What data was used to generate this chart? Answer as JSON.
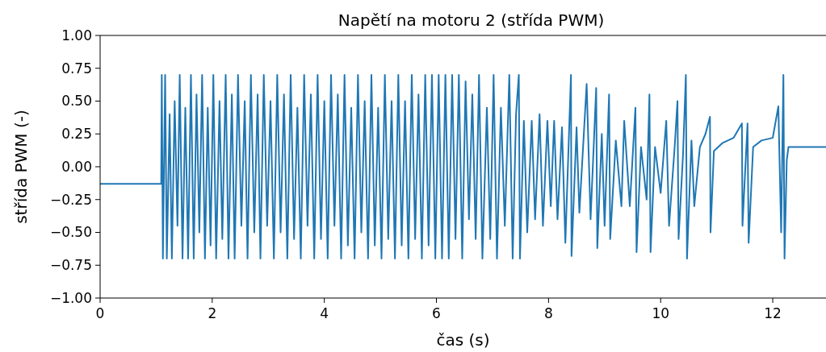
{
  "chart_data": {
    "type": "line",
    "title": "Napětí na motoru 2 (střída PWM)",
    "xlabel": "čas (s)",
    "ylabel": "střída PWM (-)",
    "xlim": [
      0,
      12.95
    ],
    "xticks": [
      0,
      2,
      4,
      6,
      8,
      10,
      12
    ],
    "ylim": [
      -1,
      1
    ],
    "yticks": [
      {
        "value": -1,
        "label": "−1.00"
      },
      {
        "value": -0.75,
        "label": "−0.75"
      },
      {
        "value": -0.5,
        "label": "−0.50"
      },
      {
        "value": -0.25,
        "label": "−0.25"
      },
      {
        "value": 0,
        "label": "0.00"
      },
      {
        "value": 0.25,
        "label": "0.25"
      },
      {
        "value": 0.5,
        "label": "0.50"
      },
      {
        "value": 0.75,
        "label": "0.75"
      },
      {
        "value": 1,
        "label": "1.00"
      }
    ],
    "grid": false,
    "series": [
      {
        "color": "#1f77b4",
        "x": [
          0,
          1.09,
          1.1,
          1.12,
          1.16,
          1.19,
          1.24,
          1.28,
          1.33,
          1.38,
          1.42,
          1.47,
          1.52,
          1.57,
          1.62,
          1.67,
          1.72,
          1.77,
          1.82,
          1.87,
          1.92,
          1.97,
          2.02,
          2.07,
          2.13,
          2.18,
          2.24,
          2.29,
          2.35,
          2.4,
          2.46,
          2.52,
          2.58,
          2.63,
          2.69,
          2.75,
          2.81,
          2.86,
          2.92,
          2.98,
          3.04,
          3.1,
          3.16,
          3.22,
          3.28,
          3.34,
          3.4,
          3.46,
          3.52,
          3.58,
          3.64,
          3.7,
          3.76,
          3.82,
          3.88,
          3.94,
          4.0,
          4.06,
          4.12,
          4.18,
          4.24,
          4.3,
          4.36,
          4.42,
          4.48,
          4.54,
          4.6,
          4.66,
          4.72,
          4.78,
          4.84,
          4.9,
          4.96,
          5.02,
          5.08,
          5.14,
          5.2,
          5.26,
          5.32,
          5.38,
          5.44,
          5.5,
          5.56,
          5.62,
          5.68,
          5.74,
          5.8,
          5.86,
          5.92,
          5.98,
          6.04,
          6.1,
          6.16,
          6.22,
          6.28,
          6.34,
          6.4,
          6.46,
          6.52,
          6.58,
          6.64,
          6.7,
          6.76,
          6.82,
          6.9,
          6.96,
          7.02,
          7.08,
          7.15,
          7.22,
          7.3,
          7.36,
          7.42,
          7.47,
          7.49,
          7.56,
          7.62,
          7.7,
          7.76,
          7.84,
          7.9,
          7.98,
          8.04,
          8.1,
          8.16,
          8.24,
          8.3,
          8.4,
          8.41,
          8.5,
          8.55,
          8.68,
          8.75,
          8.85,
          8.87,
          8.95,
          9.0,
          9.08,
          9.1,
          9.2,
          9.3,
          9.35,
          9.45,
          9.55,
          9.57,
          9.65,
          9.75,
          9.8,
          9.82,
          9.9,
          10.0,
          10.1,
          10.15,
          10.25,
          10.3,
          10.32,
          10.4,
          10.45,
          10.47,
          10.55,
          10.6,
          10.7,
          10.8,
          10.88,
          10.89,
          10.95,
          11.1,
          11.3,
          11.45,
          11.46,
          11.55,
          11.57,
          11.65,
          11.8,
          12.0,
          12.1,
          12.15,
          12.19,
          12.21,
          12.25,
          12.28,
          12.95
        ],
        "values": [
          -0.13,
          -0.13,
          0.7,
          -0.7,
          0.7,
          -0.7,
          0.4,
          -0.7,
          0.5,
          -0.45,
          0.7,
          -0.7,
          0.45,
          -0.7,
          0.7,
          -0.7,
          0.55,
          -0.5,
          0.7,
          -0.7,
          0.45,
          -0.6,
          0.7,
          -0.7,
          0.5,
          -0.55,
          0.7,
          -0.7,
          0.55,
          -0.7,
          0.7,
          -0.45,
          0.5,
          -0.7,
          0.7,
          -0.5,
          0.55,
          -0.7,
          0.7,
          -0.45,
          0.5,
          -0.7,
          0.7,
          -0.5,
          0.55,
          -0.7,
          0.7,
          -0.55,
          0.45,
          -0.7,
          0.7,
          -0.45,
          0.55,
          -0.7,
          0.7,
          -0.55,
          0.5,
          -0.7,
          0.7,
          -0.45,
          0.55,
          -0.7,
          0.7,
          -0.6,
          0.45,
          -0.7,
          0.7,
          -0.5,
          0.5,
          -0.7,
          0.7,
          -0.6,
          0.45,
          -0.7,
          0.7,
          -0.55,
          0.5,
          -0.7,
          0.7,
          -0.6,
          0.5,
          -0.7,
          0.7,
          -0.55,
          0.55,
          -0.7,
          0.7,
          -0.6,
          0.7,
          -0.7,
          0.7,
          -0.7,
          0.7,
          -0.7,
          0.7,
          -0.55,
          0.7,
          -0.7,
          0.65,
          -0.4,
          0.55,
          -0.55,
          0.7,
          -0.7,
          0.45,
          -0.55,
          0.7,
          -0.7,
          0.45,
          -0.45,
          0.7,
          -0.7,
          0.4,
          0.7,
          -0.7,
          0.35,
          -0.5,
          0.35,
          -0.4,
          0.4,
          -0.45,
          0.35,
          -0.3,
          0.35,
          -0.4,
          0.3,
          -0.58,
          0.7,
          -0.68,
          0.3,
          -0.35,
          0.63,
          -0.4,
          0.6,
          -0.62,
          0.25,
          -0.45,
          0.55,
          -0.55,
          0.2,
          -0.3,
          0.35,
          -0.3,
          0.45,
          -0.65,
          0.15,
          -0.25,
          0.55,
          -0.65,
          0.15,
          -0.2,
          0.35,
          -0.45,
          0.15,
          0.5,
          -0.55,
          0.1,
          0.7,
          -0.7,
          0.2,
          -0.3,
          0.15,
          0.25,
          0.38,
          -0.5,
          0.12,
          0.18,
          0.22,
          0.33,
          -0.45,
          0.33,
          -0.58,
          0.15,
          0.2,
          0.22,
          0.46,
          -0.5,
          0.7,
          -0.7,
          0.05,
          0.15,
          0.15
        ]
      }
    ]
  }
}
